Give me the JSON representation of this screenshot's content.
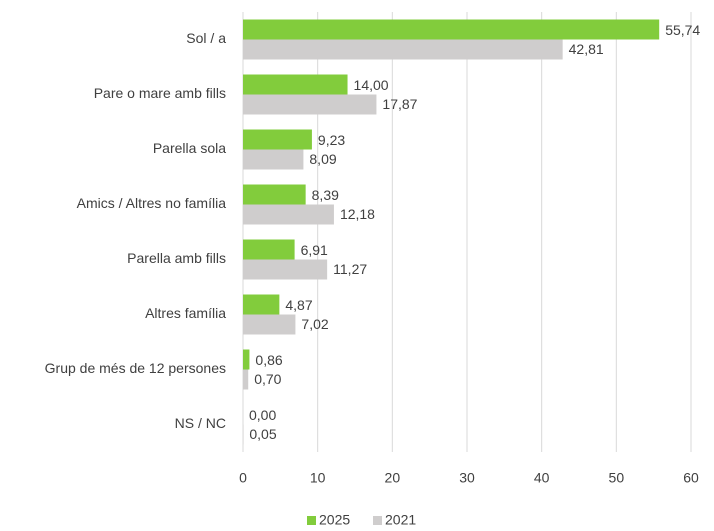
{
  "chart_data": {
    "type": "bar",
    "orientation": "horizontal",
    "categories": [
      "Sol / a",
      "Pare o mare amb fills",
      "Parella sola",
      "Amics / Altres no família",
      "Parella amb fills",
      "Altres família",
      "Grup de més de 12 persones",
      "NS / NC"
    ],
    "series": [
      {
        "name": "2025",
        "color": "#82cc3c",
        "values": [
          55.74,
          14,
          9.23,
          8.39,
          6.91,
          4.87,
          0.86,
          0
        ],
        "value_labels": [
          "55,74",
          "14,00",
          "9,23",
          "8,39",
          "6,91",
          "4,87",
          "0,86",
          "0,00"
        ]
      },
      {
        "name": "2021",
        "color": "#cfcdcd",
        "values": [
          42.81,
          17.87,
          8.09,
          12.18,
          11.27,
          7.02,
          0.7,
          0.05
        ],
        "value_labels": [
          "42,81",
          "17,87",
          "8,09",
          "12,18",
          "11,27",
          "7,02",
          "0,70",
          "0,05"
        ]
      }
    ],
    "xlim": [
      0,
      60
    ],
    "xticks": [
      0,
      10,
      20,
      30,
      40,
      50,
      60
    ],
    "grid": true,
    "legend": "bottom"
  }
}
